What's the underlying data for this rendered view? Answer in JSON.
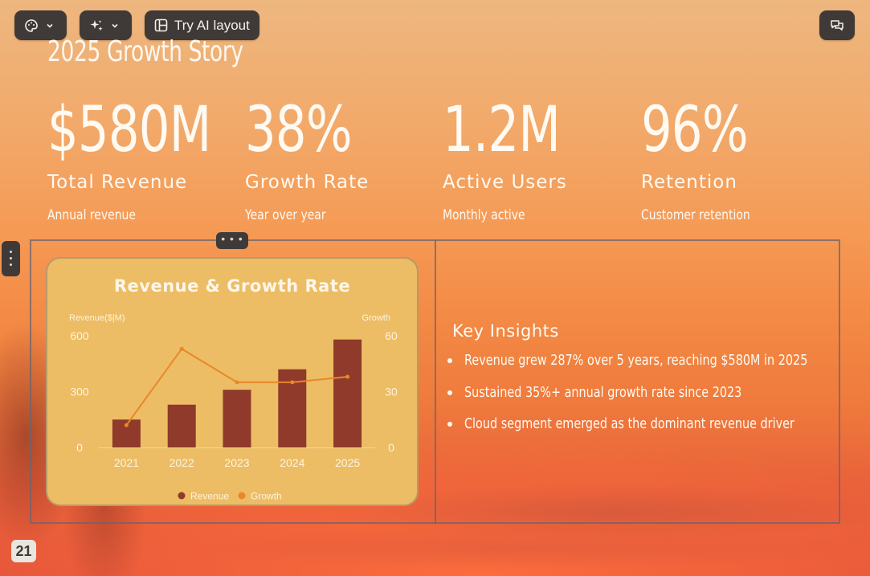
{
  "toolbar": {
    "theme_icon": "palette-icon",
    "ai_icon": "sparkles-icon",
    "ai_layout_label": "Try AI layout",
    "comments_icon": "chat-bubbles-icon"
  },
  "slide": {
    "title": "2025 Growth Story",
    "stats": [
      {
        "value": "$580M",
        "label": "Total Revenue",
        "sub": "Annual revenue"
      },
      {
        "value": "38%",
        "label": "Growth Rate",
        "sub": "Year over year"
      },
      {
        "value": "1.2M",
        "label": "Active Users",
        "sub": "Monthly active"
      },
      {
        "value": "96%",
        "label": "Retention",
        "sub": "Customer retention"
      }
    ],
    "insights": {
      "heading": "Key Insights",
      "items": [
        "Revenue grew 287% over 5 years, reaching $580M in 2025",
        "Sustained 35%+ annual growth rate since 2023",
        "Cloud segment emerged as the dominant revenue driver"
      ]
    },
    "page_number": "21"
  },
  "chart_data": {
    "type": "bar",
    "title": "Revenue & Growth Rate",
    "categories": [
      "2021",
      "2022",
      "2023",
      "2024",
      "2025"
    ],
    "series": [
      {
        "name": "Revenue",
        "type": "bar",
        "axis": "left",
        "values": [
          150,
          230,
          310,
          420,
          580
        ],
        "color": "#8f3a2b"
      },
      {
        "name": "Growth",
        "type": "line",
        "axis": "right",
        "values": [
          12,
          53,
          35,
          35,
          38
        ],
        "color": "#e8872b"
      }
    ],
    "ylabel": "Revenue($|M)",
    "y2label": "Growth",
    "ylim": [
      0,
      600
    ],
    "y2lim": [
      0,
      60
    ],
    "yticks": [
      0,
      300,
      600
    ],
    "y2ticks": [
      0,
      30,
      60
    ],
    "legend": "bottom",
    "grid": false
  }
}
